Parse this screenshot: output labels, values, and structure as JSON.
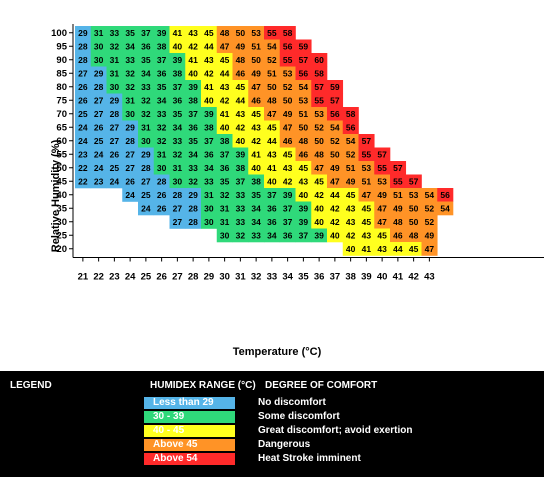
{
  "chart_data": {
    "type": "heatmap",
    "xlabel": "Temperature (°C)",
    "ylabel": "Relative Humidity (%)",
    "x": [
      21,
      22,
      23,
      24,
      25,
      26,
      27,
      28,
      29,
      30,
      31,
      32,
      33,
      34,
      35,
      36,
      37,
      38,
      39,
      40,
      41,
      42,
      43
    ],
    "y": [
      100,
      95,
      90,
      85,
      80,
      75,
      70,
      65,
      60,
      55,
      50,
      45,
      40,
      35,
      30,
      25,
      20
    ],
    "rows": [
      {
        "rh": 100,
        "start": 21,
        "values": [
          29,
          31,
          33,
          35,
          37,
          39,
          41,
          43,
          45,
          48,
          50,
          53,
          55,
          58
        ]
      },
      {
        "rh": 95,
        "start": 21,
        "values": [
          28,
          30,
          32,
          34,
          36,
          38,
          40,
          42,
          44,
          47,
          49,
          51,
          54,
          56,
          59
        ]
      },
      {
        "rh": 90,
        "start": 21,
        "values": [
          28,
          30,
          31,
          33,
          35,
          37,
          39,
          41,
          43,
          45,
          48,
          50,
          52,
          55,
          57,
          60
        ]
      },
      {
        "rh": 85,
        "start": 21,
        "values": [
          27,
          29,
          31,
          32,
          34,
          36,
          38,
          40,
          42,
          44,
          46,
          49,
          51,
          53,
          56,
          58
        ]
      },
      {
        "rh": 80,
        "start": 21,
        "values": [
          26,
          28,
          30,
          32,
          33,
          35,
          37,
          39,
          41,
          43,
          45,
          47,
          50,
          52,
          54,
          57,
          59
        ]
      },
      {
        "rh": 75,
        "start": 21,
        "values": [
          26,
          27,
          29,
          31,
          32,
          34,
          36,
          38,
          40,
          42,
          44,
          46,
          48,
          50,
          53,
          55,
          57
        ]
      },
      {
        "rh": 70,
        "start": 21,
        "values": [
          25,
          27,
          28,
          30,
          32,
          33,
          35,
          37,
          39,
          41,
          43,
          45,
          47,
          49,
          51,
          53,
          56,
          58
        ]
      },
      {
        "rh": 65,
        "start": 21,
        "values": [
          24,
          26,
          27,
          29,
          31,
          32,
          34,
          36,
          38,
          40,
          42,
          43,
          45,
          47,
          50,
          52,
          54,
          56
        ]
      },
      {
        "rh": 60,
        "start": 21,
        "values": [
          24,
          25,
          27,
          28,
          30,
          32,
          33,
          35,
          37,
          38,
          40,
          42,
          44,
          46,
          48,
          50,
          52,
          54,
          57
        ]
      },
      {
        "rh": 55,
        "start": 21,
        "values": [
          23,
          24,
          26,
          27,
          29,
          31,
          32,
          34,
          36,
          37,
          39,
          41,
          43,
          45,
          46,
          48,
          50,
          52,
          55,
          57
        ]
      },
      {
        "rh": 50,
        "start": 21,
        "values": [
          22,
          24,
          25,
          27,
          28,
          30,
          31,
          33,
          34,
          36,
          38,
          40,
          41,
          43,
          45,
          47,
          49,
          51,
          53,
          55,
          57
        ]
      },
      {
        "rh": 45,
        "start": 21,
        "values": [
          22,
          23,
          24,
          26,
          27,
          28,
          30,
          32,
          33,
          35,
          37,
          38,
          40,
          42,
          43,
          45,
          47,
          49,
          51,
          53,
          55,
          57
        ]
      },
      {
        "rh": 40,
        "start": 24,
        "values": [
          24,
          25,
          26,
          28,
          29,
          31,
          32,
          33,
          35,
          37,
          39,
          40,
          42,
          44,
          45,
          47,
          49,
          51,
          53,
          54,
          56
        ]
      },
      {
        "rh": 35,
        "start": 25,
        "values": [
          24,
          26,
          27,
          28,
          30,
          31,
          33,
          34,
          36,
          37,
          39,
          40,
          42,
          43,
          45,
          47,
          49,
          50,
          52,
          54
        ]
      },
      {
        "rh": 30,
        "start": 27,
        "values": [
          27,
          28,
          30,
          31,
          33,
          34,
          36,
          37,
          39,
          40,
          42,
          43,
          45,
          47,
          48,
          50,
          52
        ]
      },
      {
        "rh": 25,
        "start": 30,
        "values": [
          30,
          32,
          33,
          34,
          36,
          37,
          39,
          40,
          42,
          43,
          45,
          46,
          48,
          49
        ]
      },
      {
        "rh": 20,
        "start": 38,
        "values": [
          40,
          41,
          43,
          44,
          45,
          47
        ]
      }
    ],
    "bands": [
      {
        "max": 29,
        "color": "#55b4e8"
      },
      {
        "max": 39,
        "color": "#2fd97a"
      },
      {
        "max": 45,
        "color": "#ffff1e"
      },
      {
        "max": 54,
        "color": "#ff9326"
      },
      {
        "max": 999,
        "color": "#ff2a2a"
      }
    ]
  },
  "legend": {
    "title": "LEGEND",
    "range_header": "HUMIDEX RANGE (°C)",
    "comfort_header": "DEGREE OF COMFORT",
    "items": [
      {
        "range": "Less than 29",
        "comfort": "No discomfort",
        "color": "#55b4e8"
      },
      {
        "range": "30 - 39",
        "comfort": "Some discomfort",
        "color": "#2fd97a"
      },
      {
        "range": "40 - 45",
        "comfort": "Great discomfort; avoid exertion",
        "color": "#ffff1e"
      },
      {
        "range": "Above 45",
        "comfort": "Dangerous",
        "color": "#ff9326"
      },
      {
        "range": "Above 54",
        "comfort": "Heat Stroke imminent",
        "color": "#ff2a2a"
      }
    ]
  }
}
